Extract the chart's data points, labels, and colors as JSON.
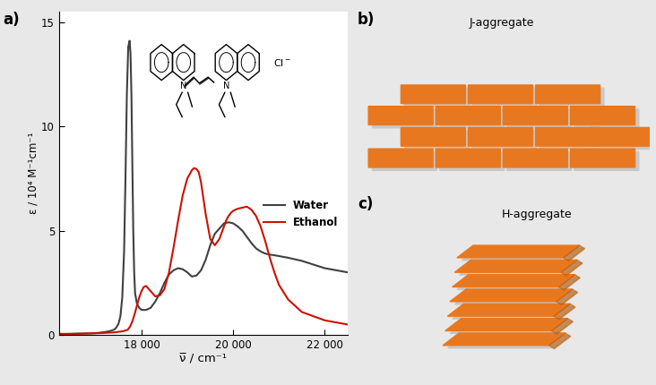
{
  "ylabel": "ε / 10⁴ M⁻¹cm⁻¹",
  "xlabel": "ν̅ / cm⁻¹",
  "xlim": [
    16200,
    22500
  ],
  "ylim": [
    0,
    15.5
  ],
  "yticks": [
    0,
    5,
    10,
    15
  ],
  "xticks": [
    18000,
    20000,
    22000
  ],
  "xtick_labels": [
    "18 000",
    "20 000",
    "22 000"
  ],
  "bg_color": "#e8e8e8",
  "panel_bg": "#ffffff",
  "panel_label_a": "a)",
  "panel_label_b": "b)",
  "panel_label_c": "c)",
  "legend_water": "Water",
  "legend_ethanol": "Ethanol",
  "j_aggregate_label": "J-aggregate",
  "h_aggregate_label": "H-aggregate",
  "water_color": "#404040",
  "ethanol_color": "#cc1100",
  "brick_color": "#e87820",
  "brick_shadow": "#c0600a",
  "water_lw": 1.5,
  "ethanol_lw": 1.5,
  "water_x": [
    16200,
    16400,
    16600,
    16800,
    17000,
    17100,
    17200,
    17300,
    17400,
    17450,
    17500,
    17540,
    17580,
    17620,
    17650,
    17680,
    17710,
    17740,
    17760,
    17780,
    17800,
    17820,
    17840,
    17860,
    17900,
    17950,
    18000,
    18050,
    18100,
    18200,
    18300,
    18400,
    18500,
    18600,
    18700,
    18800,
    18900,
    19000,
    19100,
    19200,
    19300,
    19400,
    19500,
    19600,
    19700,
    19800,
    19900,
    20000,
    20100,
    20200,
    20300,
    20400,
    20500,
    20600,
    20700,
    20800,
    20900,
    21000,
    21200,
    21500,
    22000,
    22500
  ],
  "water_y": [
    0.05,
    0.05,
    0.06,
    0.07,
    0.09,
    0.11,
    0.14,
    0.18,
    0.25,
    0.35,
    0.55,
    0.9,
    1.8,
    4.0,
    7.5,
    11.5,
    13.8,
    14.1,
    13.5,
    11.5,
    8.2,
    5.0,
    3.0,
    2.0,
    1.5,
    1.3,
    1.2,
    1.2,
    1.2,
    1.3,
    1.6,
    2.0,
    2.5,
    2.9,
    3.1,
    3.2,
    3.15,
    3.0,
    2.8,
    2.85,
    3.1,
    3.6,
    4.3,
    4.85,
    5.1,
    5.35,
    5.4,
    5.35,
    5.2,
    5.0,
    4.7,
    4.4,
    4.15,
    4.0,
    3.9,
    3.85,
    3.82,
    3.78,
    3.7,
    3.55,
    3.2,
    3.0
  ],
  "ethanol_x": [
    16200,
    16400,
    16600,
    16800,
    17000,
    17200,
    17400,
    17600,
    17700,
    17750,
    17800,
    17850,
    17900,
    17950,
    18000,
    18050,
    18100,
    18200,
    18300,
    18400,
    18500,
    18600,
    18700,
    18800,
    18900,
    19000,
    19100,
    19150,
    19200,
    19250,
    19300,
    19400,
    19500,
    19600,
    19700,
    19750,
    19800,
    19850,
    19900,
    19950,
    20000,
    20100,
    20200,
    20300,
    20400,
    20500,
    20600,
    20700,
    20800,
    20900,
    21000,
    21200,
    21500,
    22000,
    22500
  ],
  "ethanol_y": [
    0.05,
    0.05,
    0.06,
    0.07,
    0.08,
    0.1,
    0.12,
    0.18,
    0.25,
    0.4,
    0.65,
    1.0,
    1.4,
    1.8,
    2.1,
    2.3,
    2.35,
    2.1,
    1.85,
    1.9,
    2.2,
    3.0,
    4.2,
    5.5,
    6.7,
    7.5,
    7.9,
    8.0,
    7.95,
    7.8,
    7.3,
    5.8,
    4.6,
    4.3,
    4.6,
    4.9,
    5.2,
    5.5,
    5.7,
    5.85,
    5.95,
    6.05,
    6.1,
    6.15,
    6.0,
    5.7,
    5.2,
    4.5,
    3.7,
    3.0,
    2.4,
    1.7,
    1.1,
    0.7,
    0.5
  ]
}
